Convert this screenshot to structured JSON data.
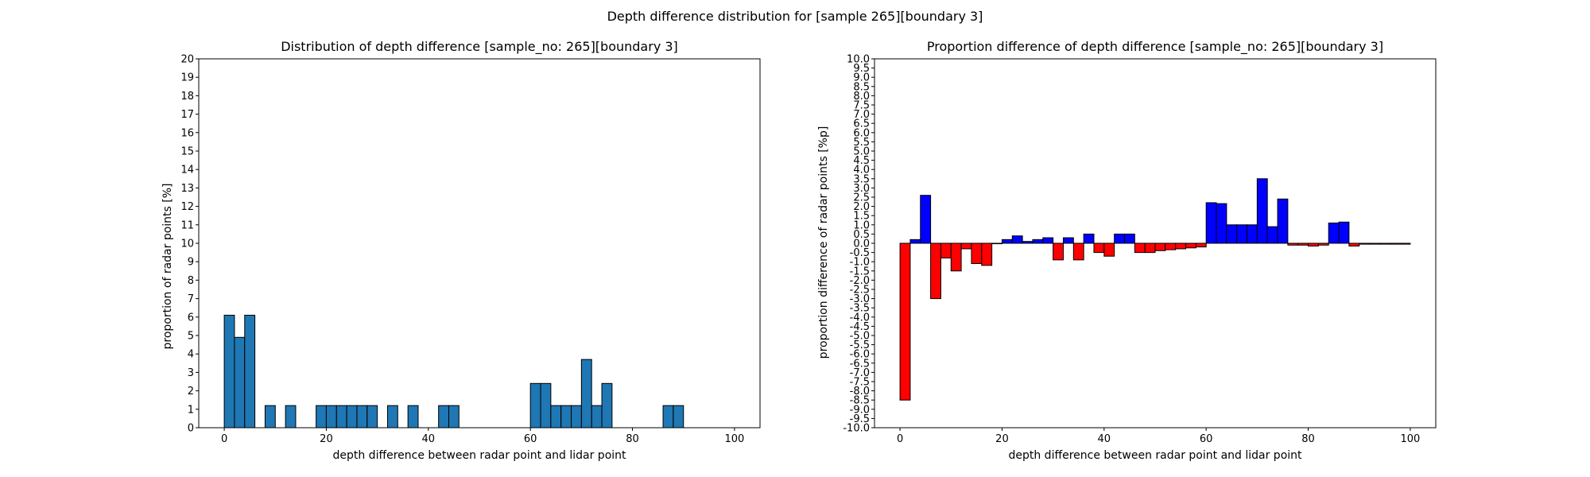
{
  "suptitle": "Depth difference distribution for [sample 265][boundary 3]",
  "chart_data": [
    {
      "type": "bar",
      "title": "Distribution of depth difference [sample_no: 265][boundary 3]",
      "xlabel": "depth difference between radar point and lidar point",
      "ylabel": "proportion of radar points [%]",
      "xlim": [
        -5,
        105
      ],
      "ylim": [
        0,
        20
      ],
      "xticks": [
        0,
        20,
        40,
        60,
        80,
        100
      ],
      "yticks": [
        0,
        1,
        2,
        3,
        4,
        5,
        6,
        7,
        8,
        9,
        10,
        11,
        12,
        13,
        14,
        15,
        16,
        17,
        18,
        19,
        20
      ],
      "bin_width": 2,
      "bar_color": "#1f77b4",
      "edge_color": "#000000",
      "x": [
        0,
        2,
        4,
        6,
        8,
        10,
        12,
        14,
        16,
        18,
        20,
        22,
        24,
        26,
        28,
        30,
        32,
        34,
        36,
        38,
        40,
        42,
        44,
        46,
        48,
        50,
        52,
        54,
        56,
        58,
        60,
        62,
        64,
        66,
        68,
        70,
        72,
        74,
        76,
        78,
        80,
        82,
        84,
        86,
        88,
        90,
        92,
        94,
        96,
        98
      ],
      "values": [
        6.1,
        4.9,
        6.1,
        0,
        1.2,
        0,
        1.2,
        0,
        0,
        1.2,
        1.2,
        1.2,
        1.2,
        1.2,
        1.2,
        0,
        1.2,
        0,
        1.2,
        0,
        0,
        1.2,
        1.2,
        0,
        0,
        0,
        0,
        0,
        0,
        0,
        2.4,
        2.4,
        1.2,
        1.2,
        1.2,
        3.7,
        1.2,
        2.4,
        0,
        0,
        0,
        0,
        0,
        1.2,
        1.2,
        0,
        0,
        0,
        0,
        0
      ]
    },
    {
      "type": "bar",
      "title": "Proportion difference of depth difference [sample_no: 265][boundary 3]",
      "xlabel": "depth difference between radar point and lidar point",
      "ylabel": "proportion difference of radar points [%p]",
      "xlim": [
        -5,
        105
      ],
      "ylim": [
        -10,
        10
      ],
      "xticks": [
        0,
        20,
        40,
        60,
        80,
        100
      ],
      "yticks": [
        10.0,
        9.5,
        9.0,
        8.5,
        8.0,
        7.5,
        7.0,
        6.5,
        6.0,
        5.5,
        5.0,
        4.5,
        4.0,
        3.5,
        3.0,
        2.5,
        2.0,
        1.5,
        1.0,
        0.5,
        0.0,
        -0.5,
        -1.0,
        -1.5,
        -2.0,
        -2.5,
        -3.0,
        -3.5,
        -4.0,
        -4.5,
        -5.0,
        -5.5,
        -6.0,
        -6.5,
        -7.0,
        -7.5,
        -8.0,
        -8.5,
        -9.0,
        -9.5,
        -10.0
      ],
      "bin_width": 2,
      "positive_color": "#0000ff",
      "negative_color": "#ff0000",
      "edge_color": "#000000",
      "x": [
        0,
        2,
        4,
        6,
        8,
        10,
        12,
        14,
        16,
        18,
        20,
        22,
        24,
        26,
        28,
        30,
        32,
        34,
        36,
        38,
        40,
        42,
        44,
        46,
        48,
        50,
        52,
        54,
        56,
        58,
        60,
        62,
        64,
        66,
        68,
        70,
        72,
        74,
        76,
        78,
        80,
        82,
        84,
        86,
        88,
        90,
        92,
        94,
        96,
        98
      ],
      "values": [
        -8.5,
        0.2,
        2.6,
        -3.0,
        -0.8,
        -1.5,
        -0.3,
        -1.1,
        -1.2,
        0.0,
        0.2,
        0.4,
        0.1,
        0.2,
        0.3,
        -0.9,
        0.3,
        -0.9,
        0.5,
        -0.5,
        -0.7,
        0.5,
        0.5,
        -0.5,
        -0.5,
        -0.4,
        -0.35,
        -0.3,
        -0.25,
        -0.2,
        2.2,
        2.15,
        1.0,
        1.0,
        1.0,
        3.5,
        0.9,
        2.4,
        -0.1,
        -0.1,
        -0.15,
        -0.1,
        1.1,
        1.15,
        -0.15,
        -0.05,
        -0.05,
        -0.05,
        -0.05,
        -0.05
      ]
    }
  ]
}
